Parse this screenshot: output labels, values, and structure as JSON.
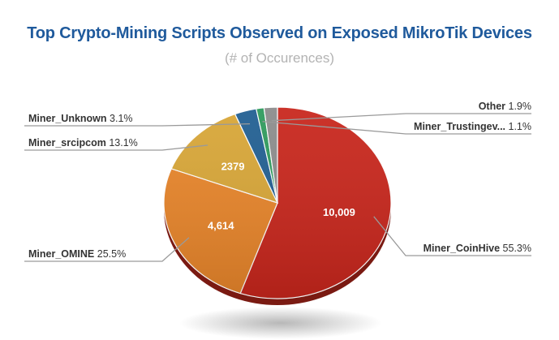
{
  "chart_data": {
    "type": "pie",
    "title": "Top Crypto-Mining Scripts Observed on Exposed MikroTik Devices",
    "subtitle": "(# of Occurences)",
    "slices": [
      {
        "name": "Miner_CoinHive",
        "percent": 55.3,
        "value_label": "10,009",
        "color": "#c8261c"
      },
      {
        "name": "Miner_OMINE",
        "percent": 25.5,
        "value_label": "4,614",
        "color": "#e8852a"
      },
      {
        "name": "Miner_srcipcom",
        "percent": 13.1,
        "value_label": "2379",
        "color": "#d8a637"
      },
      {
        "name": "Miner_Unknown",
        "percent": 3.1,
        "value_label": "",
        "color": "#215f92"
      },
      {
        "name": "Miner_Trustingev...",
        "percent": 1.1,
        "value_label": "",
        "color": "#2e9a5c"
      },
      {
        "name": "Other",
        "percent": 1.9,
        "value_label": "",
        "color": "#8c8c8c"
      }
    ]
  }
}
